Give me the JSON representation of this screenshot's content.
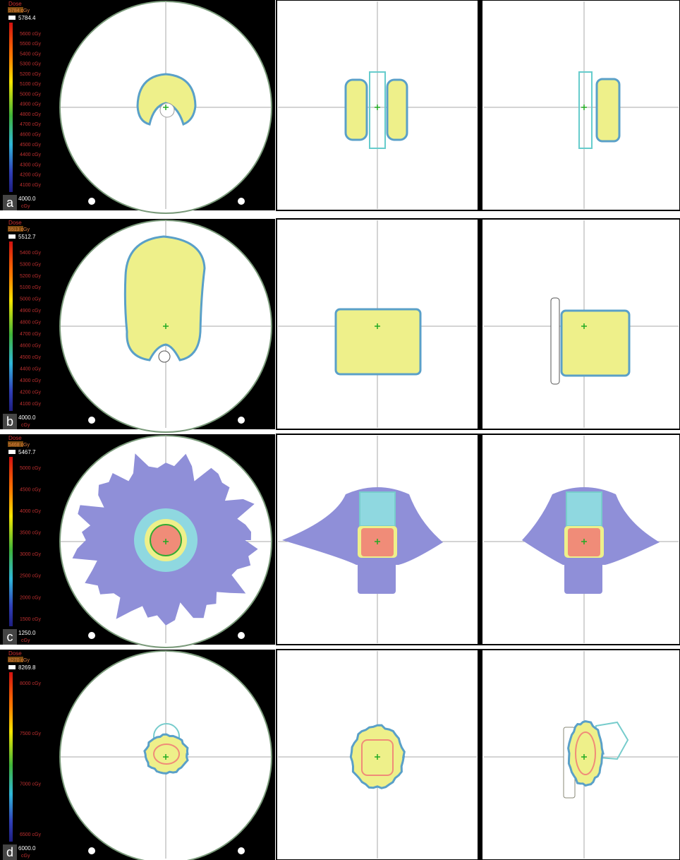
{
  "panels": [
    {
      "label": "a",
      "legend": {
        "title": "Dose",
        "unit_box": "5784 cGy",
        "max": "5784.4",
        "levels": [
          "5600 cGy",
          "5500 cGy",
          "5400 cGy",
          "5300 cGy",
          "5200 cGy",
          "5100 cGy",
          "5000 cGy",
          "4900 cGy",
          "4800 cGy",
          "4700 cGy",
          "4600 cGy",
          "4500 cGy",
          "4400 cGy",
          "4300 cGy",
          "4200 cGy",
          "4100 cGy"
        ],
        "min": "4000.0",
        "min_unit": "cGy"
      }
    },
    {
      "label": "b",
      "legend": {
        "title": "Dose",
        "unit_box": "5513 cGy",
        "max": "5512.7",
        "levels": [
          "5400 cGy",
          "5300 cGy",
          "5200 cGy",
          "5100 cGy",
          "5000 cGy",
          "4900 cGy",
          "4800 cGy",
          "4700 cGy",
          "4600 cGy",
          "4500 cGy",
          "4400 cGy",
          "4300 cGy",
          "4200 cGy",
          "4100 cGy"
        ],
        "min": "4000.0",
        "min_unit": "cGy"
      }
    },
    {
      "label": "c",
      "legend": {
        "title": "Dose",
        "unit_box": "5468 cGy",
        "max": "5467.7",
        "levels": [
          "5000 cGy",
          "4500 cGy",
          "4000 cGy",
          "3500 cGy",
          "3000 cGy",
          "2500 cGy",
          "2000 cGy",
          "1500 cGy"
        ],
        "min": "1250.0",
        "min_unit": "cGy"
      }
    },
    {
      "label": "d",
      "legend": {
        "title": "Dose",
        "unit_box": "8270 cGy",
        "max": "8269.8",
        "levels": [
          "8000 cGy",
          "7500 cGy",
          "7000 cGy",
          "6500 cGy"
        ],
        "min": "6000.0",
        "min_unit": "cGy"
      }
    }
  ]
}
